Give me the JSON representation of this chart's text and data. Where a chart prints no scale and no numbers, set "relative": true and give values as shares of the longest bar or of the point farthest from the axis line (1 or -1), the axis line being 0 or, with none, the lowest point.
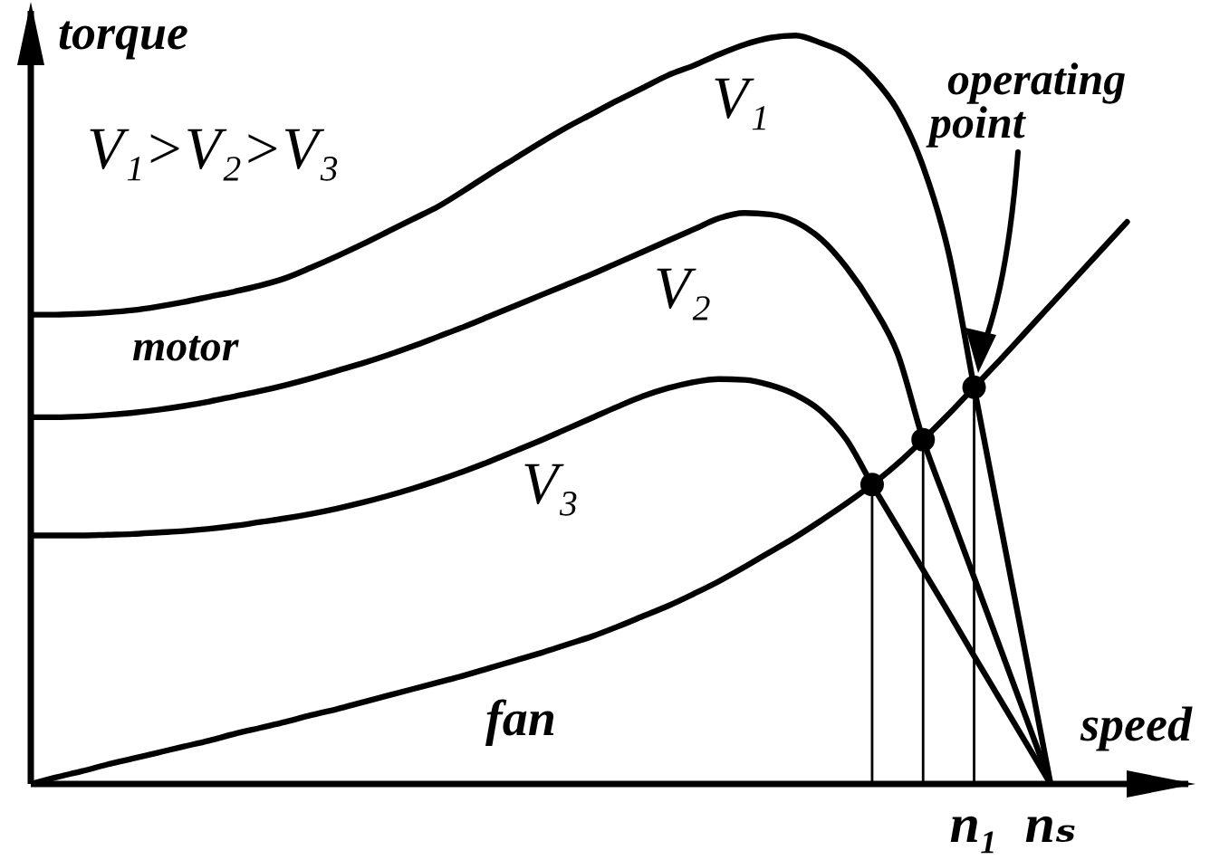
{
  "chart_data": {
    "type": "line",
    "relative": true,
    "xlabel": "speed",
    "ylabel": "torque",
    "categories": [
      null,
      null,
      null,
      null,
      null,
      null,
      null,
      null,
      null,
      null,
      null,
      null,
      null,
      null,
      null,
      null,
      null,
      null,
      null,
      null,
      null,
      null,
      null,
      null,
      null,
      null,
      null,
      null,
      null,
      null,
      null,
      null,
      null,
      null,
      null,
      null,
      null,
      "n₁",
      null,
      null,
      "nₛ",
      null,
      null,
      null
    ],
    "marker": "none",
    "line_style": "solid",
    "annotations": [
      "V₁>V₂>V₃",
      "motor",
      "operating point"
    ],
    "series": [
      {
        "name": "V₁",
        "color": "#000000",
        "values": [
          0.627,
          0.627,
          0.628,
          0.63,
          0.633,
          0.638,
          0.644,
          0.651,
          0.658,
          0.666,
          0.676,
          0.69,
          0.705,
          0.721,
          0.738,
          0.755,
          0.772,
          0.793,
          0.815,
          0.836,
          0.857,
          0.877,
          0.895,
          0.913,
          0.93,
          0.947,
          0.96,
          0.975,
          0.988,
          0.997,
          1,
          0.99,
          0.975,
          0.945,
          0.9,
          0.825,
          0.71,
          0.53,
          0.353,
          0.177,
          0,
          null,
          null,
          null
        ]
      },
      {
        "name": "V₂",
        "color": "#000000",
        "values": [
          0.49,
          0.49,
          0.491,
          0.493,
          0.496,
          0.5,
          0.505,
          0.511,
          0.518,
          0.525,
          0.533,
          0.542,
          0.552,
          0.562,
          0.573,
          0.585,
          0.598,
          0.611,
          0.625,
          0.639,
          0.653,
          0.667,
          0.681,
          0.696,
          0.711,
          0.726,
          0.741,
          0.756,
          0.763,
          0.761,
          0.751,
          0.728,
          0.69,
          0.64,
          0.575,
          0.46,
          0.368,
          0.276,
          0.184,
          0.092,
          0,
          null,
          null,
          null
        ]
      },
      {
        "name": "V₃",
        "color": "#000000",
        "values": [
          0.332,
          0.332,
          0.332,
          0.333,
          0.334,
          0.336,
          0.338,
          0.341,
          0.345,
          0.35,
          0.355,
          0.361,
          0.368,
          0.376,
          0.385,
          0.395,
          0.406,
          0.418,
          0.431,
          0.445,
          0.459,
          0.474,
          0.489,
          0.504,
          0.518,
          0.529,
          0.537,
          0.541,
          0.54,
          0.533,
          0.52,
          0.498,
          0.46,
          0.4,
          0.343,
          0.286,
          0.229,
          0.171,
          0.114,
          0.057,
          0,
          null,
          null,
          null
        ]
      },
      {
        "name": "fan",
        "color": "#000000",
        "values": [
          0,
          0.009,
          0.017,
          0.026,
          0.034,
          0.042,
          0.05,
          0.058,
          0.067,
          0.075,
          0.083,
          0.092,
          0.1,
          0.109,
          0.118,
          0.127,
          0.136,
          0.145,
          0.155,
          0.165,
          0.175,
          0.186,
          0.197,
          0.21,
          0.224,
          0.238,
          0.254,
          0.271,
          0.29,
          0.31,
          0.33,
          0.352,
          0.375,
          0.4,
          0.428,
          0.46,
          0.494,
          0.53,
          0.566,
          0.603,
          0.64,
          0.677,
          0.714,
          0.751
        ]
      },
      {
        "type": "lollipop",
        "marker": "circle",
        "color": "#000000",
        "values": [
          null,
          null,
          null,
          null,
          null,
          null,
          null,
          null,
          null,
          null,
          null,
          null,
          null,
          null,
          null,
          null,
          null,
          null,
          null,
          null,
          null,
          null,
          null,
          null,
          null,
          null,
          null,
          null,
          null,
          null,
          null,
          null,
          null,
          0.4,
          null,
          0.46,
          null,
          0.53,
          null,
          null,
          null,
          null,
          null,
          null
        ]
      }
    ]
  }
}
